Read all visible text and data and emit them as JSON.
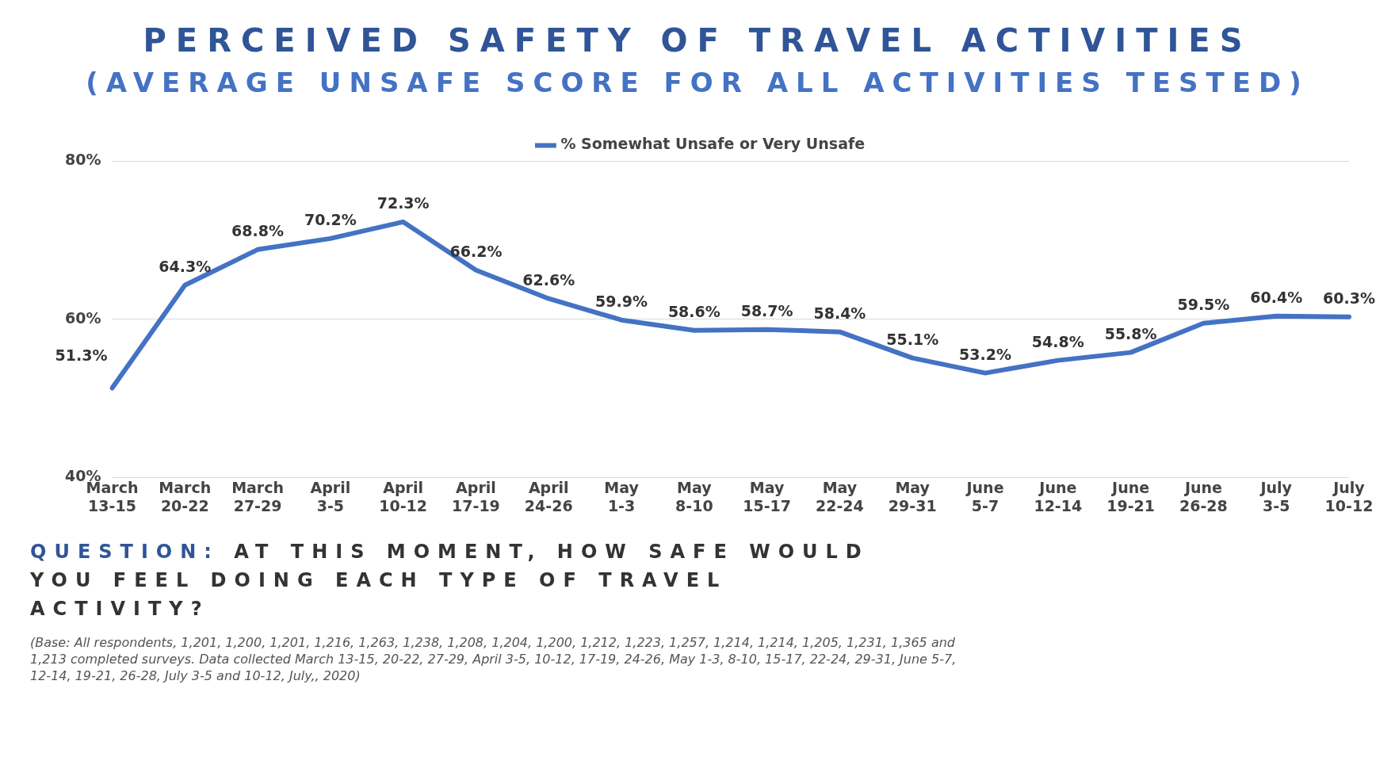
{
  "chart_data": {
    "type": "line",
    "title": "PERCEIVED SAFETY OF TRAVEL ACTIVITIES",
    "subtitle": "(AVERAGE UNSAFE SCORE FOR ALL ACTIVITIES TESTED)",
    "categories": [
      "March 13-15",
      "March 20-22",
      "March 27-29",
      "April 3-5",
      "April 10-12",
      "April 17-19",
      "April 24-26",
      "May 1-3",
      "May 8-10",
      "May 15-17",
      "May 22-24",
      "May 29-31",
      "June 5-7",
      "June 12-14",
      "June 19-21",
      "June 26-28",
      "July 3-5",
      "July 10-12"
    ],
    "series": [
      {
        "name": "% Somewhat Unsafe or Very Unsafe",
        "color": "#4472c4",
        "values": [
          51.3,
          64.3,
          68.8,
          70.2,
          72.3,
          66.2,
          62.6,
          59.9,
          58.6,
          58.7,
          58.4,
          55.1,
          53.2,
          54.8,
          55.8,
          59.5,
          60.4,
          60.3
        ],
        "value_labels": [
          "51.3%",
          "64.3%",
          "68.8%",
          "70.2%",
          "72.3%",
          "66.2%",
          "62.6%",
          "59.9%",
          "58.6%",
          "58.7%",
          "58.4%",
          "55.1%",
          "53.2%",
          "54.8%",
          "55.8%",
          "59.5%",
          "60.4%",
          "60.3%"
        ]
      }
    ],
    "ylim": [
      40,
      80
    ],
    "yticks": [
      {
        "value": 40,
        "label": "40%"
      },
      {
        "value": 60,
        "label": "60%"
      },
      {
        "value": 80,
        "label": "80%"
      }
    ],
    "grid": "y",
    "legend": "top",
    "marker": "none",
    "line_style": "solid",
    "annotations": [
      "QUESTION: AT THIS MOMENT, HOW SAFE WOULD YOU FEEL DOING EACH TYPE OF TRAVEL ACTIVITY?",
      "(Base: All respondents, 1,201, 1,200, 1,201, 1,216, 1,263, 1,238, 1,208, 1,204, 1,200, 1,212, 1,223, 1,257, 1,214, 1,214, 1,205, 1,231, 1,365 and 1,213 completed surveys. Data collected March 13-15, 20-22, 27-29, April 3-5, 10-12, 17-19, 24-26, May 1-3, 8-10, 15-17, 22-24, 29-31, June 5-7, 12-14, 19-21, 26-28, July 3-5 and 10-12, July,, 2020)"
    ]
  }
}
